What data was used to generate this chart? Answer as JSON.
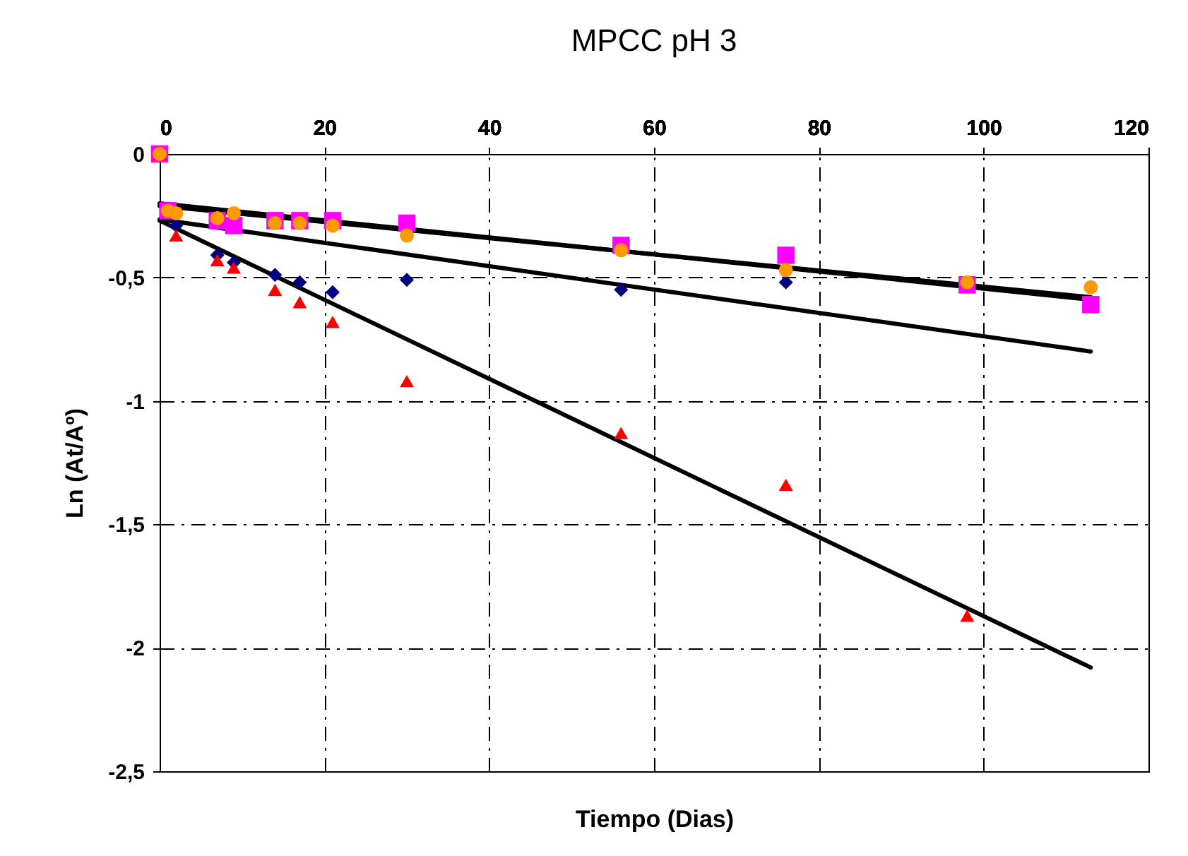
{
  "chart_data": {
    "type": "scatter",
    "title": "MPCC pH 3",
    "xlabel": "Tiempo (Dias)",
    "ylabel": "Ln (At/Aº)",
    "xlim": [
      0,
      120
    ],
    "xticks": [
      0,
      20,
      40,
      60,
      80,
      100,
      120
    ],
    "ylim": [
      -2.5,
      0
    ],
    "yticks": [
      {
        "value": 0,
        "label": "0"
      },
      {
        "value": -0.5,
        "label": "-0,5"
      },
      {
        "value": -1,
        "label": "-1"
      },
      {
        "value": -1.5,
        "label": "-1,5"
      },
      {
        "value": -2,
        "label": "-2"
      },
      {
        "value": -2.5,
        "label": "-2,5"
      }
    ],
    "grid": true,
    "series": [
      {
        "type": "line",
        "marker": "none",
        "line_style": "solid",
        "color": "#000000",
        "x": [
          0,
          113
        ],
        "values": [
          -0.2,
          -0.59
        ]
      },
      {
        "type": "line",
        "marker": "none",
        "line_style": "solid",
        "color": "#000000",
        "x": [
          0,
          113
        ],
        "values": [
          -0.21,
          -0.58
        ]
      },
      {
        "type": "line",
        "marker": "none",
        "line_style": "solid",
        "color": "#000000",
        "x": [
          0,
          113
        ],
        "values": [
          -0.265,
          -0.8
        ]
      },
      {
        "type": "line",
        "marker": "none",
        "line_style": "solid",
        "color": "#000000",
        "x": [
          0,
          113
        ],
        "values": [
          -0.27,
          -2.08
        ]
      },
      {
        "marker": "diamond",
        "color": "#000080",
        "x": [
          2,
          7,
          9,
          14,
          17,
          21,
          30,
          56,
          76
        ],
        "values": [
          -0.29,
          -0.41,
          -0.44,
          -0.49,
          -0.52,
          -0.56,
          -0.51,
          -0.55,
          -0.52
        ]
      },
      {
        "marker": "square",
        "color": "#ff00ff",
        "x": [
          0,
          1,
          7,
          9,
          14,
          17,
          21,
          30,
          56,
          76,
          98,
          113
        ],
        "values": [
          0,
          -0.23,
          -0.27,
          -0.29,
          -0.27,
          -0.27,
          -0.27,
          -0.28,
          -0.37,
          -0.41,
          -0.53,
          -0.61
        ]
      },
      {
        "marker": "triangle",
        "color": "#ff0000",
        "x": [
          0,
          2,
          7,
          9,
          14,
          17,
          21,
          30,
          56,
          76,
          98
        ],
        "values": [
          0,
          -0.33,
          -0.43,
          -0.46,
          -0.55,
          -0.6,
          -0.68,
          -0.92,
          -1.13,
          -1.34,
          -1.87
        ]
      },
      {
        "marker": "circle",
        "color": "#ff9900",
        "x": [
          0,
          1,
          2,
          7,
          9,
          14,
          17,
          21,
          30,
          56,
          76,
          98,
          113
        ],
        "values": [
          0,
          -0.23,
          -0.24,
          -0.26,
          -0.24,
          -0.28,
          -0.28,
          -0.29,
          -0.33,
          -0.39,
          -0.47,
          -0.52,
          -0.54
        ]
      }
    ]
  }
}
